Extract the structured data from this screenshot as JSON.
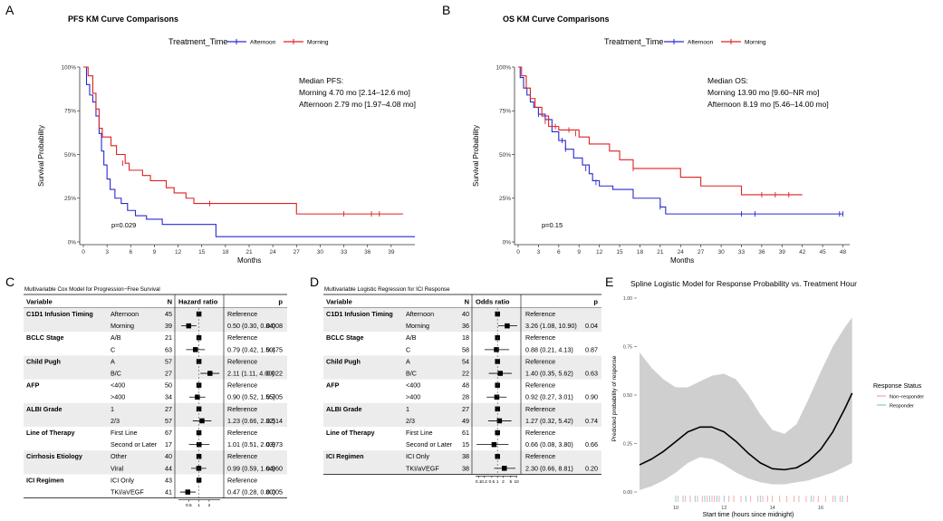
{
  "colors": {
    "afternoon": "#2a2ad0",
    "morning": "#e02020",
    "responder": "#7fc9d6",
    "non_responder": "#f2a3a3",
    "band": "#cfcfcf",
    "row_shade": "#ececec"
  },
  "panels": {
    "A": "A",
    "B": "B",
    "C": "C",
    "D": "D",
    "E": "E"
  },
  "km": [
    {
      "title": "PFS KM Curve Comparisons",
      "legend_title": "Treatment_Time",
      "legend_labels": [
        "Afternoon",
        "Morning"
      ],
      "ylabel": "Survival Probability",
      "xlabel": "Months",
      "yticks": [
        "0%",
        "25%",
        "50%",
        "75%",
        "100%"
      ],
      "xticks": [
        "0",
        "3",
        "6",
        "9",
        "12",
        "15",
        "18",
        "21",
        "24",
        "27",
        "30",
        "33",
        "36",
        "39"
      ],
      "median_title": "Median PFS:",
      "median_morning": "Morning 4.70 mo [2.14–12.6 mo]",
      "median_afternoon": "Afternoon 2.79 mo [1.97–4.08 mo]",
      "pvalue": "p=0.029"
    },
    {
      "title": "OS KM Curve Comparisons",
      "legend_title": "Treatment_Time",
      "legend_labels": [
        "Afternoon",
        "Morning"
      ],
      "ylabel": "Survival Probability",
      "xlabel": "Months",
      "yticks": [
        "0%",
        "25%",
        "50%",
        "75%",
        "100%"
      ],
      "xticks": [
        "0",
        "3",
        "6",
        "9",
        "12",
        "15",
        "18",
        "21",
        "24",
        "27",
        "30",
        "33",
        "36",
        "39",
        "42",
        "45",
        "48"
      ],
      "median_title": "Median OS:",
      "median_morning": "Morning 13.90 mo [9.60–NR mo]",
      "median_afternoon": "Afternoon 8.19 mo [5.46–14.00 mo]",
      "pvalue": "p=0.15"
    }
  ],
  "chart_data": [
    {
      "type": "line",
      "title": "PFS KM Curve Comparisons",
      "xlabel": "Months",
      "ylabel": "Survival Probability",
      "xlim": [
        0,
        42
      ],
      "ylim": [
        0,
        1
      ],
      "series": [
        {
          "name": "Afternoon",
          "steps": [
            [
              0,
              1
            ],
            [
              0.4,
              0.9
            ],
            [
              0.8,
              0.84
            ],
            [
              1.2,
              0.8
            ],
            [
              1.6,
              0.72
            ],
            [
              2,
              0.62
            ],
            [
              2.3,
              0.52
            ],
            [
              2.6,
              0.44
            ],
            [
              3,
              0.36
            ],
            [
              3.4,
              0.3
            ],
            [
              4,
              0.25
            ],
            [
              4.8,
              0.22
            ],
            [
              5.6,
              0.18
            ],
            [
              6.6,
              0.15
            ],
            [
              8,
              0.13
            ],
            [
              10,
              0.1
            ],
            [
              16.8,
              0.03
            ],
            [
              42,
              0.03
            ]
          ],
          "censors": []
        },
        {
          "name": "Morning",
          "steps": [
            [
              0,
              1
            ],
            [
              0.6,
              0.95
            ],
            [
              1.2,
              0.85
            ],
            [
              1.6,
              0.76
            ],
            [
              2,
              0.65
            ],
            [
              2.4,
              0.6
            ],
            [
              3.5,
              0.55
            ],
            [
              4.2,
              0.5
            ],
            [
              5.3,
              0.45
            ],
            [
              5.8,
              0.41
            ],
            [
              7.5,
              0.38
            ],
            [
              8.5,
              0.35
            ],
            [
              10.5,
              0.31
            ],
            [
              11.5,
              0.28
            ],
            [
              13,
              0.25
            ],
            [
              14,
              0.22
            ],
            [
              27,
              0.16
            ],
            [
              40.5,
              0.16
            ]
          ],
          "censors": [
            [
              5,
              0.45
            ],
            [
              16,
              0.22
            ],
            [
              33,
              0.16
            ],
            [
              36.5,
              0.16
            ],
            [
              37.5,
              0.16
            ]
          ]
        }
      ]
    },
    {
      "type": "line",
      "title": "OS KM Curve Comparisons",
      "xlabel": "Months",
      "ylabel": "Survival Probability",
      "xlim": [
        0,
        49
      ],
      "ylim": [
        0,
        1
      ],
      "series": [
        {
          "name": "Afternoon",
          "steps": [
            [
              0,
              1
            ],
            [
              0.3,
              0.94
            ],
            [
              0.8,
              0.88
            ],
            [
              1.3,
              0.84
            ],
            [
              1.8,
              0.8
            ],
            [
              2.3,
              0.77
            ],
            [
              3,
              0.73
            ],
            [
              4,
              0.7
            ],
            [
              5,
              0.63
            ],
            [
              6,
              0.58
            ],
            [
              7,
              0.53
            ],
            [
              8.2,
              0.48
            ],
            [
              9.5,
              0.44
            ],
            [
              10.5,
              0.39
            ],
            [
              11,
              0.35
            ],
            [
              12,
              0.32
            ],
            [
              14,
              0.3
            ],
            [
              17,
              0.25
            ],
            [
              21,
              0.2
            ],
            [
              21.8,
              0.16
            ],
            [
              48,
              0.16
            ]
          ],
          "censors": [
            [
              3,
              0.73
            ],
            [
              6.5,
              0.58
            ],
            [
              7,
              0.53
            ],
            [
              10,
              0.42
            ],
            [
              11.5,
              0.34
            ],
            [
              21,
              0.2
            ],
            [
              33,
              0.16
            ],
            [
              35,
              0.16
            ],
            [
              47.5,
              0.16
            ],
            [
              48,
              0.16
            ]
          ]
        },
        {
          "name": "Morning",
          "steps": [
            [
              0,
              1
            ],
            [
              0.5,
              0.95
            ],
            [
              1.2,
              0.88
            ],
            [
              1.8,
              0.82
            ],
            [
              2.5,
              0.77
            ],
            [
              3.5,
              0.72
            ],
            [
              4.5,
              0.66
            ],
            [
              6,
              0.64
            ],
            [
              9,
              0.6
            ],
            [
              10.5,
              0.56
            ],
            [
              13.5,
              0.52
            ],
            [
              15,
              0.47
            ],
            [
              17,
              0.42
            ],
            [
              24,
              0.37
            ],
            [
              27,
              0.32
            ],
            [
              33,
              0.27
            ],
            [
              42,
              0.27
            ]
          ],
          "censors": [
            [
              4,
              0.69
            ],
            [
              5.5,
              0.66
            ],
            [
              7.5,
              0.64
            ],
            [
              8.5,
              0.62
            ],
            [
              17,
              0.42
            ],
            [
              36,
              0.27
            ],
            [
              38,
              0.27
            ],
            [
              40,
              0.27
            ]
          ]
        }
      ]
    },
    {
      "type": "table",
      "title": "Multivariable Cox Model for Progression−Free Survival",
      "columns": [
        "Variable",
        "",
        "N",
        "Hazard ratio",
        "",
        "p"
      ],
      "x_ticks": [
        "0.5",
        "1",
        "2"
      ],
      "rows": [
        {
          "var": "C1D1 Infusion Timing",
          "level": "Afternoon",
          "n": "45",
          "est": 1,
          "lo": null,
          "hi": null,
          "text": "Reference",
          "p": ""
        },
        {
          "var": "",
          "level": "Morning",
          "n": "39",
          "est": 0.5,
          "lo": 0.3,
          "hi": 0.84,
          "text": "0.50 (0.30, 0.84)",
          "p": "0.008"
        },
        {
          "var": "BCLC Stage",
          "level": "A/B",
          "n": "21",
          "est": 1,
          "lo": null,
          "hi": null,
          "text": "Reference",
          "p": ""
        },
        {
          "var": "",
          "level": "C",
          "n": "63",
          "est": 0.79,
          "lo": 0.42,
          "hi": 1.5,
          "text": "0.79 (0.42, 1.50)",
          "p": "0.475"
        },
        {
          "var": "Child Pugh",
          "level": "A",
          "n": "57",
          "est": 1,
          "lo": null,
          "hi": null,
          "text": "Reference",
          "p": ""
        },
        {
          "var": "",
          "level": "B/C",
          "n": "27",
          "est": 2.11,
          "lo": 1.11,
          "hi": 4.0,
          "text": "2.11 (1.11, 4.00)",
          "p": "0.022"
        },
        {
          "var": "AFP",
          "level": "<400",
          "n": "50",
          "est": 1,
          "lo": null,
          "hi": null,
          "text": "Reference",
          "p": ""
        },
        {
          "var": "",
          "level": ">400",
          "n": "34",
          "est": 0.9,
          "lo": 0.52,
          "hi": 1.55,
          "text": "0.90 (0.52, 1.55)",
          "p": "0.705"
        },
        {
          "var": "ALBI Grade",
          "level": "1",
          "n": "27",
          "est": 1,
          "lo": null,
          "hi": null,
          "text": "Reference",
          "p": ""
        },
        {
          "var": "",
          "level": "2/3",
          "n": "57",
          "est": 1.23,
          "lo": 0.66,
          "hi": 2.32,
          "text": "1.23 (0.66, 2.32)",
          "p": "0.514"
        },
        {
          "var": "Line of Therapy",
          "level": "First Line",
          "n": "67",
          "est": 1,
          "lo": null,
          "hi": null,
          "text": "Reference",
          "p": ""
        },
        {
          "var": "",
          "level": "Second or Later",
          "n": "17",
          "est": 1.01,
          "lo": 0.51,
          "hi": 2.03,
          "text": "1.01 (0.51, 2.03)",
          "p": "0.973"
        },
        {
          "var": "Cirrhosis Etiology",
          "level": "Other",
          "n": "40",
          "est": 1,
          "lo": null,
          "hi": null,
          "text": "Reference",
          "p": ""
        },
        {
          "var": "",
          "level": "Viral",
          "n": "44",
          "est": 0.99,
          "lo": 0.59,
          "hi": 1.64,
          "text": "0.99 (0.59, 1.64)",
          "p": "0.960"
        },
        {
          "var": "ICI Regimen",
          "level": "ICI Only",
          "n": "43",
          "est": 1,
          "lo": null,
          "hi": null,
          "text": "Reference",
          "p": ""
        },
        {
          "var": "",
          "level": "TKI/aVEGF",
          "n": "41",
          "est": 0.47,
          "lo": 0.28,
          "hi": 0.8,
          "text": "0.47 (0.28, 0.80)",
          "p": "0.005"
        }
      ]
    },
    {
      "type": "table",
      "title": "Multivariable Logistic Regression for ICI Response",
      "columns": [
        "Variable",
        "",
        "N",
        "Odds ratio",
        "",
        "p"
      ],
      "x_ticks": [
        "0.1",
        "0.2",
        "0.5",
        "1",
        "2",
        "5",
        "10"
      ],
      "rows": [
        {
          "var": "C1D1 Infusion Timing",
          "level": "Afternoon",
          "n": "40",
          "est": 1,
          "lo": null,
          "hi": null,
          "text": "Reference",
          "p": ""
        },
        {
          "var": "",
          "level": "Morning",
          "n": "36",
          "est": 3.26,
          "lo": 1.08,
          "hi": 10.9,
          "text": "3.26 (1.08, 10.90)",
          "p": "0.04"
        },
        {
          "var": "BCLC Stage",
          "level": "A/B",
          "n": "18",
          "est": 1,
          "lo": null,
          "hi": null,
          "text": "Reference",
          "p": ""
        },
        {
          "var": "",
          "level": "C",
          "n": "58",
          "est": 0.88,
          "lo": 0.21,
          "hi": 4.13,
          "text": "0.88 (0.21, 4.13)",
          "p": "0.87"
        },
        {
          "var": "Child Pugh",
          "level": "A",
          "n": "54",
          "est": 1,
          "lo": null,
          "hi": null,
          "text": "Reference",
          "p": ""
        },
        {
          "var": "",
          "level": "B/C",
          "n": "22",
          "est": 1.4,
          "lo": 0.35,
          "hi": 5.62,
          "text": "1.40 (0.35, 5.62)",
          "p": "0.63"
        },
        {
          "var": "AFP",
          "level": "<400",
          "n": "48",
          "est": 1,
          "lo": null,
          "hi": null,
          "text": "Reference",
          "p": ""
        },
        {
          "var": "",
          "level": ">400",
          "n": "28",
          "est": 0.92,
          "lo": 0.27,
          "hi": 3.01,
          "text": "0.92 (0.27, 3.01)",
          "p": "0.90"
        },
        {
          "var": "ALBI Grade",
          "level": "1",
          "n": "27",
          "est": 1,
          "lo": null,
          "hi": null,
          "text": "Reference",
          "p": ""
        },
        {
          "var": "",
          "level": "2/3",
          "n": "49",
          "est": 1.27,
          "lo": 0.32,
          "hi": 5.42,
          "text": "1.27 (0.32, 5.42)",
          "p": "0.74"
        },
        {
          "var": "Line of Therapy",
          "level": "First Line",
          "n": "61",
          "est": 1,
          "lo": null,
          "hi": null,
          "text": "Reference",
          "p": ""
        },
        {
          "var": "",
          "level": "Second or Later",
          "n": "15",
          "est": 0.66,
          "lo": 0.08,
          "hi": 3.8,
          "text": "0.66 (0.08, 3.80)",
          "p": "0.66"
        },
        {
          "var": "ICI Regimen",
          "level": "ICI Only",
          "n": "38",
          "est": 1,
          "lo": null,
          "hi": null,
          "text": "Reference",
          "p": ""
        },
        {
          "var": "",
          "level": "TKI/aVEGF",
          "n": "38",
          "est": 2.3,
          "lo": 0.66,
          "hi": 8.81,
          "text": "2.30 (0.66, 8.81)",
          "p": "0.20"
        }
      ]
    },
    {
      "type": "line",
      "title": "Spline Logistic Model for Response Probability vs. Treatment Hour",
      "xlabel": "Start time (hours since midnight)",
      "ylabel": "Predicted probability of response",
      "xlim": [
        8.5,
        17.5
      ],
      "ylim": [
        0,
        1
      ],
      "x_ticks": [
        "10",
        "12",
        "14",
        "16"
      ],
      "y_ticks": [
        "0.00",
        "0.25",
        "0.50",
        "0.75",
        "1.00"
      ],
      "legend_title": "Response Status",
      "series": [
        {
          "name": "fit",
          "x": [
            8.5,
            9,
            9.5,
            10,
            10.5,
            11,
            11.5,
            12,
            12.5,
            13,
            13.5,
            14,
            14.5,
            15,
            15.5,
            16,
            16.5,
            17,
            17.3
          ],
          "y": [
            0.14,
            0.17,
            0.21,
            0.26,
            0.31,
            0.335,
            0.335,
            0.31,
            0.26,
            0.2,
            0.15,
            0.12,
            0.115,
            0.125,
            0.16,
            0.22,
            0.31,
            0.43,
            0.51
          ],
          "lower": [
            0.01,
            0.03,
            0.06,
            0.1,
            0.15,
            0.18,
            0.17,
            0.14,
            0.1,
            0.07,
            0.05,
            0.04,
            0.04,
            0.05,
            0.06,
            0.08,
            0.1,
            0.13,
            0.15
          ],
          "upper": [
            0.72,
            0.64,
            0.58,
            0.54,
            0.54,
            0.57,
            0.6,
            0.61,
            0.58,
            0.5,
            0.4,
            0.32,
            0.3,
            0.35,
            0.48,
            0.62,
            0.75,
            0.85,
            0.9
          ]
        }
      ],
      "rug": [
        {
          "name": "Non−responder",
          "x": [
            10.1,
            10.4,
            10.6,
            10.9,
            11.1,
            11.3,
            11.5,
            11.6,
            11.8,
            12.2,
            12.4,
            12.7,
            13.1,
            13.4,
            13.6,
            13.8,
            14.0,
            14.3,
            14.6,
            14.9,
            15.1,
            15.4,
            15.7,
            15.9,
            16.2,
            16.5,
            16.8,
            17.1
          ]
        },
        {
          "name": "Responder",
          "x": [
            10.0,
            10.3,
            10.8,
            11.2,
            11.4,
            11.7,
            12.0,
            12.9,
            13.5,
            15.6,
            16.6,
            16.9
          ]
        }
      ]
    }
  ]
}
